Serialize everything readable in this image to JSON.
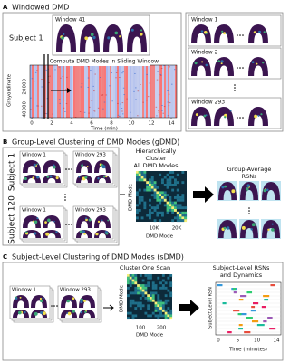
{
  "panel_a": {
    "letter": "A",
    "title": "Windowed DMD",
    "subject": "Subject 1",
    "inset_window": "Window 41",
    "compute_label": "Compute DMD Modes in Sliding Window",
    "y_axis_label": "Grayordinate",
    "y_ticks": [
      "20000",
      "40000"
    ],
    "x_axis_label": "Time (min)",
    "x_ticks": [
      "0",
      "2",
      "4",
      "6",
      "8",
      "10",
      "12",
      "14"
    ],
    "windows": [
      "Window 1",
      "Window 2",
      "Window 293"
    ]
  },
  "panel_b": {
    "letter": "B",
    "title": "Group-Level Clustering of DMD Modes (gDMD)",
    "subjects": [
      "Subject 1",
      "Subject 120"
    ],
    "windows": [
      "Window 1",
      "Window 293"
    ],
    "cluster_label": [
      "Hierarchically",
      "Cluster",
      "All DMD Modes"
    ],
    "axis_label": "DMD Mode",
    "x_ticks": [
      "10K",
      "20K"
    ],
    "result_label": [
      "Group-Average",
      "RSNs"
    ]
  },
  "panel_c": {
    "letter": "C",
    "title": "Subject-Level Clustering of DMD Modes (sDMD)",
    "windows": [
      "Window 1",
      "Window 293"
    ],
    "cluster_label": "Cluster One Scan",
    "axis_label": "DMD Mode",
    "x_ticks": [
      "100",
      "200"
    ],
    "result_label": [
      "Subject-Level RSNs",
      "and Dynamics"
    ],
    "plot_y_label": "Subject-Level RSN",
    "plot_x_label": "Time (minutes)",
    "plot_x_ticks": [
      "0",
      "5",
      "10",
      "14"
    ]
  }
}
